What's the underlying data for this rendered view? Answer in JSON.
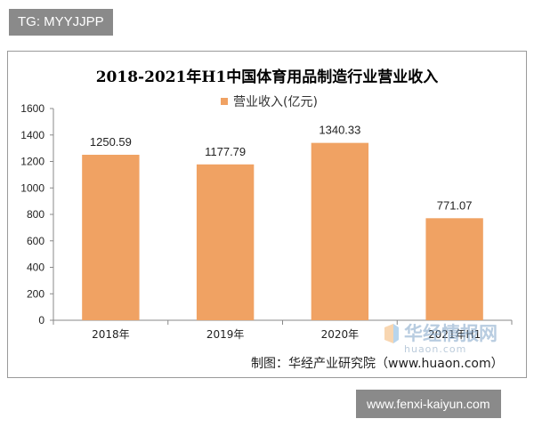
{
  "overlay": {
    "top_left_tag": "TG: MYYJJPP",
    "bottom_right_tag": "www.fenxi-kaiyun.com"
  },
  "watermark": {
    "cn": "华经情报网",
    "en": "huaon.com"
  },
  "source_note": "制图：华经产业研究院（www.huaon.com）",
  "chart_data": {
    "type": "bar",
    "title": "2018-2021年H1中国体育用品制造行业营业收入",
    "categories": [
      "2018年",
      "2019年",
      "2020年",
      "2021年H1"
    ],
    "series": [
      {
        "name": "营业收入(亿元)",
        "values": [
          1250.59,
          1177.79,
          1340.33,
          771.07
        ]
      }
    ],
    "data_labels": [
      "1250.59",
      "1177.79",
      "1340.33",
      "771.07"
    ],
    "ylim": [
      0,
      1600
    ],
    "yticks": [
      0,
      200,
      400,
      600,
      800,
      1000,
      1200,
      1400,
      1600
    ],
    "xlabel": "",
    "ylabel": "",
    "grid": false,
    "legend_position": "top",
    "colors": {
      "bar": "#f0a263",
      "axis": "#888888",
      "text": "#222222"
    }
  }
}
